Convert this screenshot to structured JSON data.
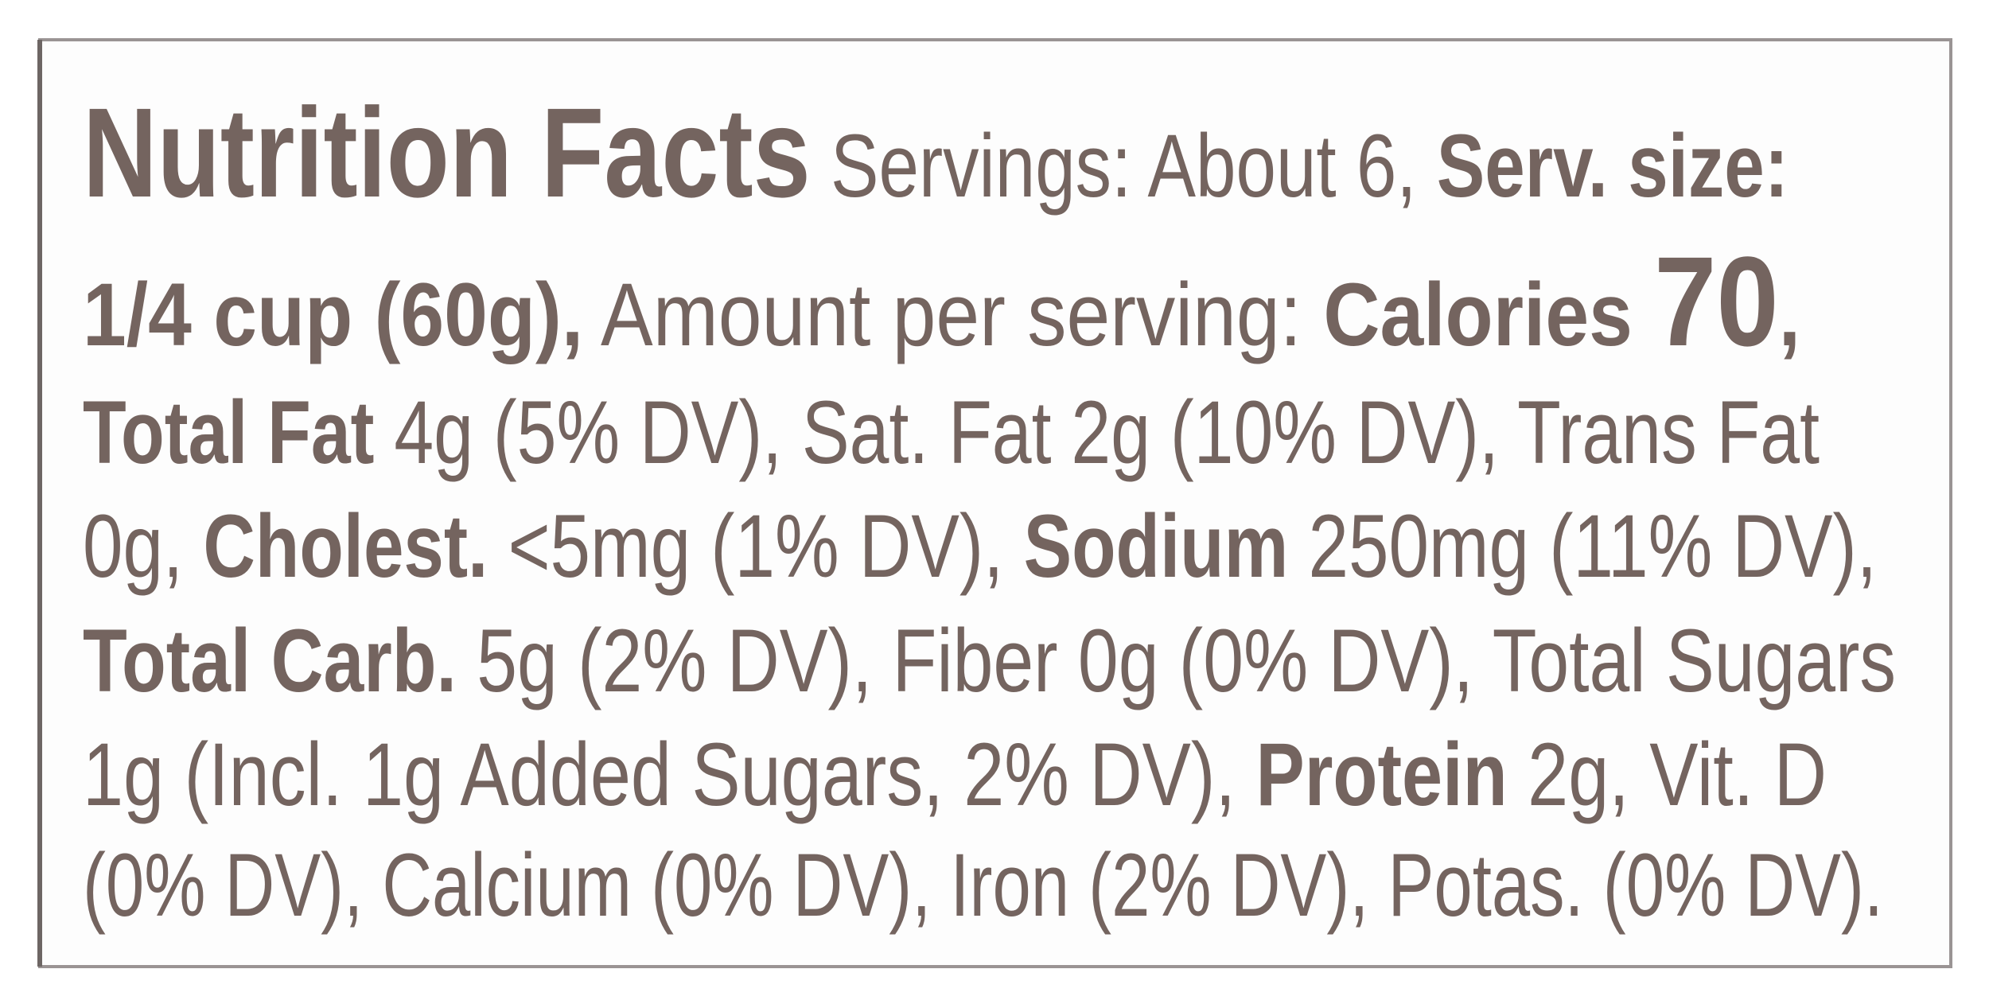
{
  "label": {
    "lines": [
      [
        "Nutrition Facts",
        "Servings: About 6,",
        "Serv. size:"
      ],
      [
        "1/4 cup (60g),",
        "Amount per serving:",
        "Calories",
        "70",
        ","
      ],
      [
        "Total Fat",
        "4g (5% DV), Sat. Fat 2g (10% DV), Trans Fat"
      ],
      [
        "0g,",
        "Cholest.",
        "<5mg (1% DV),",
        "Sodium",
        "250mg (11% DV),"
      ],
      [
        "Total Carb.",
        "5g (2% DV), Fiber 0g (0% DV), Total Sugars"
      ],
      [
        "1g (Incl. 1g Added Sugars, 2% DV),",
        "Protein",
        "2g, Vit. D"
      ],
      [
        "(0% DV), Calcium (0% DV), Iron (2% DV), Potas. (0% DV)."
      ]
    ]
  }
}
